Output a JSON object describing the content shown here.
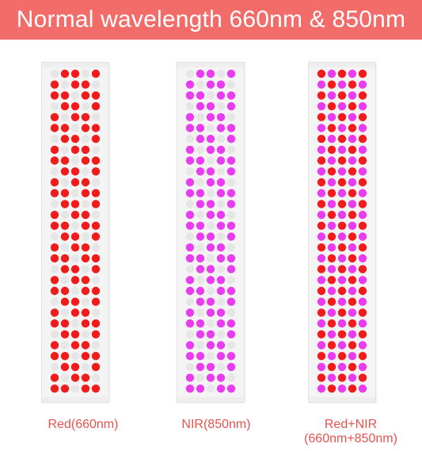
{
  "banner": {
    "title": "Normal wavelength 660nm & 850nm"
  },
  "panels": [
    {
      "id": "red",
      "caption": [
        "Red(660nm)"
      ],
      "pattern": "diagonal",
      "lit_color": "#f21b1b",
      "off_color": "#e6e6e6"
    },
    {
      "id": "nir",
      "caption": [
        "NIR(850nm)"
      ],
      "pattern": "diagonal",
      "lit_color": "#e93cf0",
      "off_color": "#e6e6e6"
    },
    {
      "id": "mix",
      "caption": [
        "Red+NIR",
        "(660nm+850nm)"
      ],
      "pattern": "checker",
      "lit_color": "#f21b1b",
      "alt_color": "#e93cf0"
    }
  ],
  "colors": {
    "banner": "#f26c6a",
    "caption": "#e8534f"
  }
}
